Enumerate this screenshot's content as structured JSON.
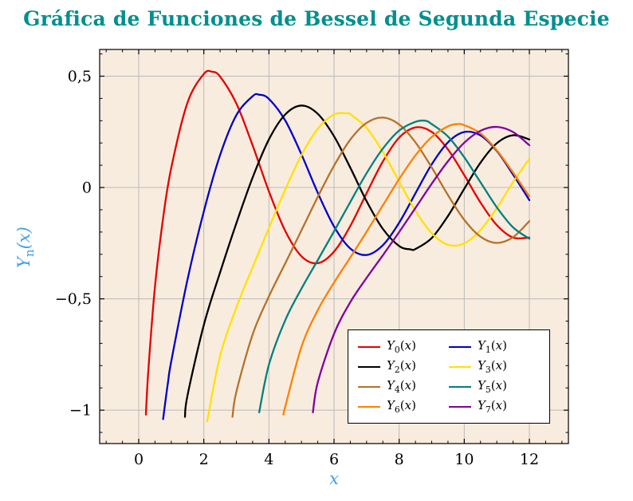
{
  "styles": {
    "title_color": "#008f8f",
    "axis_label_color": "#44a1e6",
    "plot_bg": "#f8ecde",
    "grid_color": "#bababa",
    "frame_color": "#000000"
  },
  "chart_data": {
    "type": "line",
    "title": "Gráfica de Funciones de Bessel de Segunda Especie",
    "xlabel": "x",
    "ylabel": "Y_n(x)",
    "xlim": [
      -1.2,
      13.2
    ],
    "ylim": [
      -1.15,
      0.62
    ],
    "grid": true,
    "legend_position": "south east",
    "x_minor_step": 0.5,
    "y_minor_step": 0.1,
    "xticks": [
      {
        "v": 0,
        "label": "0"
      },
      {
        "v": 2,
        "label": "2"
      },
      {
        "v": 4,
        "label": "4"
      },
      {
        "v": 6,
        "label": "6"
      },
      {
        "v": 8,
        "label": "8"
      },
      {
        "v": 10,
        "label": "10"
      },
      {
        "v": 12,
        "label": "12"
      }
    ],
    "yticks": [
      {
        "v": 0.5,
        "label": "0,5"
      },
      {
        "v": 0,
        "label": "0"
      },
      {
        "v": -0.5,
        "label": "−0,5"
      },
      {
        "v": -1,
        "label": "−1"
      }
    ],
    "series": [
      {
        "name": "Y_0(x)",
        "color": "#e60000",
        "points": [
          [
            0.22,
            -1.02
          ],
          [
            0.3,
            -0.81
          ],
          [
            0.5,
            -0.444
          ],
          [
            0.75,
            -0.137
          ],
          [
            1,
            0.088
          ],
          [
            1.5,
            0.382
          ],
          [
            2,
            0.51
          ],
          [
            2.25,
            0.52
          ],
          [
            2.5,
            0.498
          ],
          [
            3,
            0.377
          ],
          [
            3.5,
            0.189
          ],
          [
            4,
            -0.017
          ],
          [
            4.5,
            -0.195
          ],
          [
            5,
            -0.309
          ],
          [
            5.5,
            -0.34
          ],
          [
            6,
            -0.288
          ],
          [
            6.5,
            -0.173
          ],
          [
            7,
            -0.026
          ],
          [
            7.5,
            0.117
          ],
          [
            8,
            0.224
          ],
          [
            8.5,
            0.27
          ],
          [
            9,
            0.25
          ],
          [
            9.5,
            0.171
          ],
          [
            10,
            0.056
          ],
          [
            10.5,
            -0.068
          ],
          [
            11,
            -0.169
          ],
          [
            11.5,
            -0.225
          ],
          [
            12,
            -0.225
          ]
        ]
      },
      {
        "name": "Y_1(x)",
        "color": "#0000cd",
        "points": [
          [
            0.75,
            -1.04
          ],
          [
            0.9,
            -0.873
          ],
          [
            1,
            -0.781
          ],
          [
            1.5,
            -0.412
          ],
          [
            2,
            -0.107
          ],
          [
            2.5,
            0.146
          ],
          [
            3,
            0.325
          ],
          [
            3.5,
            0.41
          ],
          [
            3.7,
            0.417
          ],
          [
            4,
            0.398
          ],
          [
            4.5,
            0.301
          ],
          [
            5,
            0.148
          ],
          [
            5.5,
            -0.024
          ],
          [
            6,
            -0.175
          ],
          [
            6.5,
            -0.274
          ],
          [
            7,
            -0.303
          ],
          [
            7.5,
            -0.259
          ],
          [
            8,
            -0.158
          ],
          [
            8.5,
            -0.026
          ],
          [
            9,
            0.104
          ],
          [
            9.5,
            0.203
          ],
          [
            10,
            0.249
          ],
          [
            10.5,
            0.234
          ],
          [
            11,
            0.164
          ],
          [
            11.5,
            0.058
          ],
          [
            12,
            -0.057
          ]
        ]
      },
      {
        "name": "Y_2(x)",
        "color": "#000000",
        "points": [
          [
            1.42,
            -1.03
          ],
          [
            1.5,
            -0.932
          ],
          [
            2,
            -0.617
          ],
          [
            2.5,
            -0.381
          ],
          [
            3,
            -0.16
          ],
          [
            3.5,
            0.045
          ],
          [
            4,
            0.216
          ],
          [
            4.5,
            0.328
          ],
          [
            5,
            0.368
          ],
          [
            5.5,
            0.331
          ],
          [
            6,
            0.23
          ],
          [
            6.5,
            0.089
          ],
          [
            7,
            -0.061
          ],
          [
            7.5,
            -0.186
          ],
          [
            8,
            -0.263
          ],
          [
            8.35,
            -0.278
          ],
          [
            8.5,
            -0.276
          ],
          [
            9,
            -0.227
          ],
          [
            9.5,
            -0.128
          ],
          [
            10,
            -0.006
          ],
          [
            10.5,
            0.112
          ],
          [
            11,
            0.199
          ],
          [
            11.5,
            0.235
          ],
          [
            12,
            0.216
          ]
        ]
      },
      {
        "name": "Y_3(x)",
        "color": "#ffe100",
        "points": [
          [
            2.1,
            -1.05
          ],
          [
            2.5,
            -0.756
          ],
          [
            3,
            -0.539
          ],
          [
            3.5,
            -0.358
          ],
          [
            4,
            -0.182
          ],
          [
            4.5,
            -0.009
          ],
          [
            5,
            0.146
          ],
          [
            5.5,
            0.264
          ],
          [
            6,
            0.328
          ],
          [
            6.4,
            0.333
          ],
          [
            6.5,
            0.329
          ],
          [
            7,
            0.268
          ],
          [
            7.5,
            0.16
          ],
          [
            8,
            0.027
          ],
          [
            8.5,
            -0.104
          ],
          [
            9,
            -0.205
          ],
          [
            9.5,
            -0.257
          ],
          [
            10,
            -0.251
          ],
          [
            10.5,
            -0.191
          ],
          [
            11,
            -0.092
          ],
          [
            11.5,
            0.024
          ],
          [
            12,
            0.129
          ]
        ]
      },
      {
        "name": "Y_4(x)",
        "color": "#b5722b",
        "points": [
          [
            2.88,
            -1.03
          ],
          [
            3,
            -0.917
          ],
          [
            3.5,
            -0.66
          ],
          [
            4,
            -0.489
          ],
          [
            4.5,
            -0.341
          ],
          [
            5,
            -0.192
          ],
          [
            5.5,
            -0.042
          ],
          [
            6,
            0.098
          ],
          [
            6.5,
            0.215
          ],
          [
            7,
            0.29
          ],
          [
            7.5,
            0.314
          ],
          [
            8,
            0.283
          ],
          [
            8.5,
            0.203
          ],
          [
            9,
            0.09
          ],
          [
            9.5,
            -0.034
          ],
          [
            10,
            -0.145
          ],
          [
            10.5,
            -0.221
          ],
          [
            11,
            -0.249
          ],
          [
            11.5,
            -0.223
          ],
          [
            12,
            -0.151
          ]
        ]
      },
      {
        "name": "Y_5(x)",
        "color": "#008080",
        "points": [
          [
            3.7,
            -1.01
          ],
          [
            4,
            -0.796
          ],
          [
            4.5,
            -0.596
          ],
          [
            5,
            -0.454
          ],
          [
            5.5,
            -0.326
          ],
          [
            6,
            -0.197
          ],
          [
            6.5,
            -0.065
          ],
          [
            7,
            0.064
          ],
          [
            7.5,
            0.175
          ],
          [
            8,
            0.256
          ],
          [
            8.5,
            0.295
          ],
          [
            8.8,
            0.3
          ],
          [
            9,
            0.285
          ],
          [
            9.5,
            0.229
          ],
          [
            10,
            0.136
          ],
          [
            10.5,
            0.023
          ],
          [
            11,
            -0.089
          ],
          [
            11.5,
            -0.179
          ],
          [
            12,
            -0.23
          ]
        ]
      },
      {
        "name": "Y_6(x)",
        "color": "#ff8000",
        "points": [
          [
            4.45,
            -1.02
          ],
          [
            4.5,
            -0.985
          ],
          [
            5,
            -0.715
          ],
          [
            5.5,
            -0.551
          ],
          [
            6,
            -0.427
          ],
          [
            6.5,
            -0.314
          ],
          [
            7,
            -0.199
          ],
          [
            7.5,
            -0.08
          ],
          [
            8,
            0.038
          ],
          [
            8.5,
            0.144
          ],
          [
            9,
            0.227
          ],
          [
            9.5,
            0.275
          ],
          [
            9.8,
            0.285
          ],
          [
            10,
            0.28
          ],
          [
            10.5,
            0.243
          ],
          [
            11,
            0.167
          ],
          [
            11.5,
            0.067
          ],
          [
            12,
            -0.04
          ]
        ]
      },
      {
        "name": "Y_7(x)",
        "color": "#8000a0",
        "points": [
          [
            5.35,
            -1.01
          ],
          [
            5.5,
            -0.875
          ],
          [
            6,
            -0.657
          ],
          [
            6.5,
            -0.515
          ],
          [
            7,
            -0.406
          ],
          [
            7.5,
            -0.304
          ],
          [
            8,
            -0.2
          ],
          [
            8.5,
            -0.092
          ],
          [
            9,
            0.017
          ],
          [
            9.5,
            0.118
          ],
          [
            10,
            0.201
          ],
          [
            10.5,
            0.255
          ],
          [
            11,
            0.272
          ],
          [
            11.5,
            0.249
          ],
          [
            12,
            0.19
          ]
        ]
      }
    ]
  }
}
